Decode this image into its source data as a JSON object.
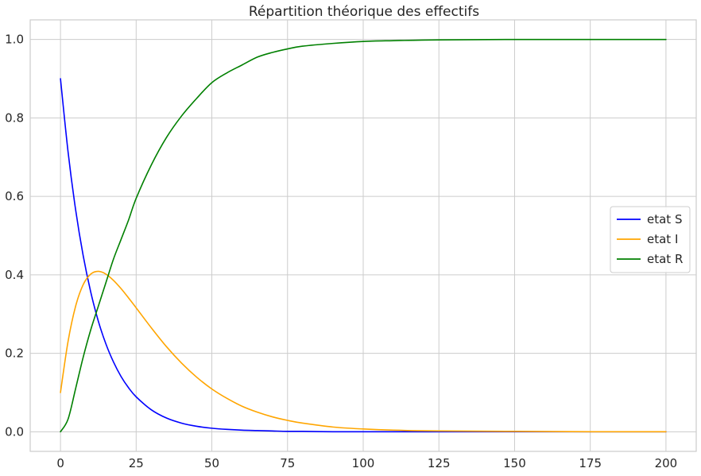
{
  "chart_data": {
    "type": "line",
    "title": "Répartition théorique des effectifs",
    "xlabel": "",
    "ylabel": "",
    "xlim": [
      -10,
      210
    ],
    "ylim": [
      -0.05,
      1.05
    ],
    "grid": true,
    "legend_position": "center-right",
    "x_ticks": [
      0,
      25,
      50,
      75,
      100,
      125,
      150,
      175,
      200
    ],
    "x_tick_labels": [
      "0",
      "25",
      "50",
      "75",
      "100",
      "125",
      "150",
      "175",
      "200"
    ],
    "y_ticks": [
      0.0,
      0.2,
      0.4,
      0.6,
      0.8,
      1.0
    ],
    "y_tick_labels": [
      "0.0",
      "0.2",
      "0.4",
      "0.6",
      "0.8",
      "1.0"
    ],
    "x": [
      0,
      2.5,
      5,
      7.5,
      10,
      12.5,
      15,
      17.5,
      20,
      22.5,
      25,
      30,
      35,
      40,
      45,
      50,
      55,
      60,
      65,
      70,
      75,
      80,
      90,
      100,
      110,
      125,
      150,
      175,
      200
    ],
    "series": [
      {
        "name": "etat S",
        "color": "#0000ff",
        "values": [
          0.9,
          0.714,
          0.566,
          0.449,
          0.356,
          0.282,
          0.224,
          0.178,
          0.141,
          0.112,
          0.089,
          0.056,
          0.035,
          0.022,
          0.014,
          0.009,
          0.006,
          0.004,
          0.003,
          0.002,
          0.001,
          0.001,
          0.0,
          0.0,
          0.0,
          0.0,
          0.0,
          0.0,
          0.0
        ]
      },
      {
        "name": "etat I",
        "color": "#ffa500",
        "values": [
          0.1,
          0.23,
          0.32,
          0.375,
          0.402,
          0.409,
          0.402,
          0.386,
          0.365,
          0.341,
          0.316,
          0.265,
          0.217,
          0.175,
          0.139,
          0.109,
          0.085,
          0.065,
          0.05,
          0.038,
          0.029,
          0.022,
          0.012,
          0.007,
          0.004,
          0.002,
          0.001,
          0.0,
          0.0
        ]
      },
      {
        "name": "etat R",
        "color": "#008000",
        "values": [
          0.0,
          0.032,
          0.11,
          0.19,
          0.26,
          0.32,
          0.38,
          0.44,
          0.49,
          0.54,
          0.595,
          0.68,
          0.75,
          0.805,
          0.85,
          0.89,
          0.915,
          0.935,
          0.955,
          0.967,
          0.976,
          0.983,
          0.99,
          0.995,
          0.997,
          0.999,
          1.0,
          1.0,
          1.0
        ]
      }
    ]
  }
}
